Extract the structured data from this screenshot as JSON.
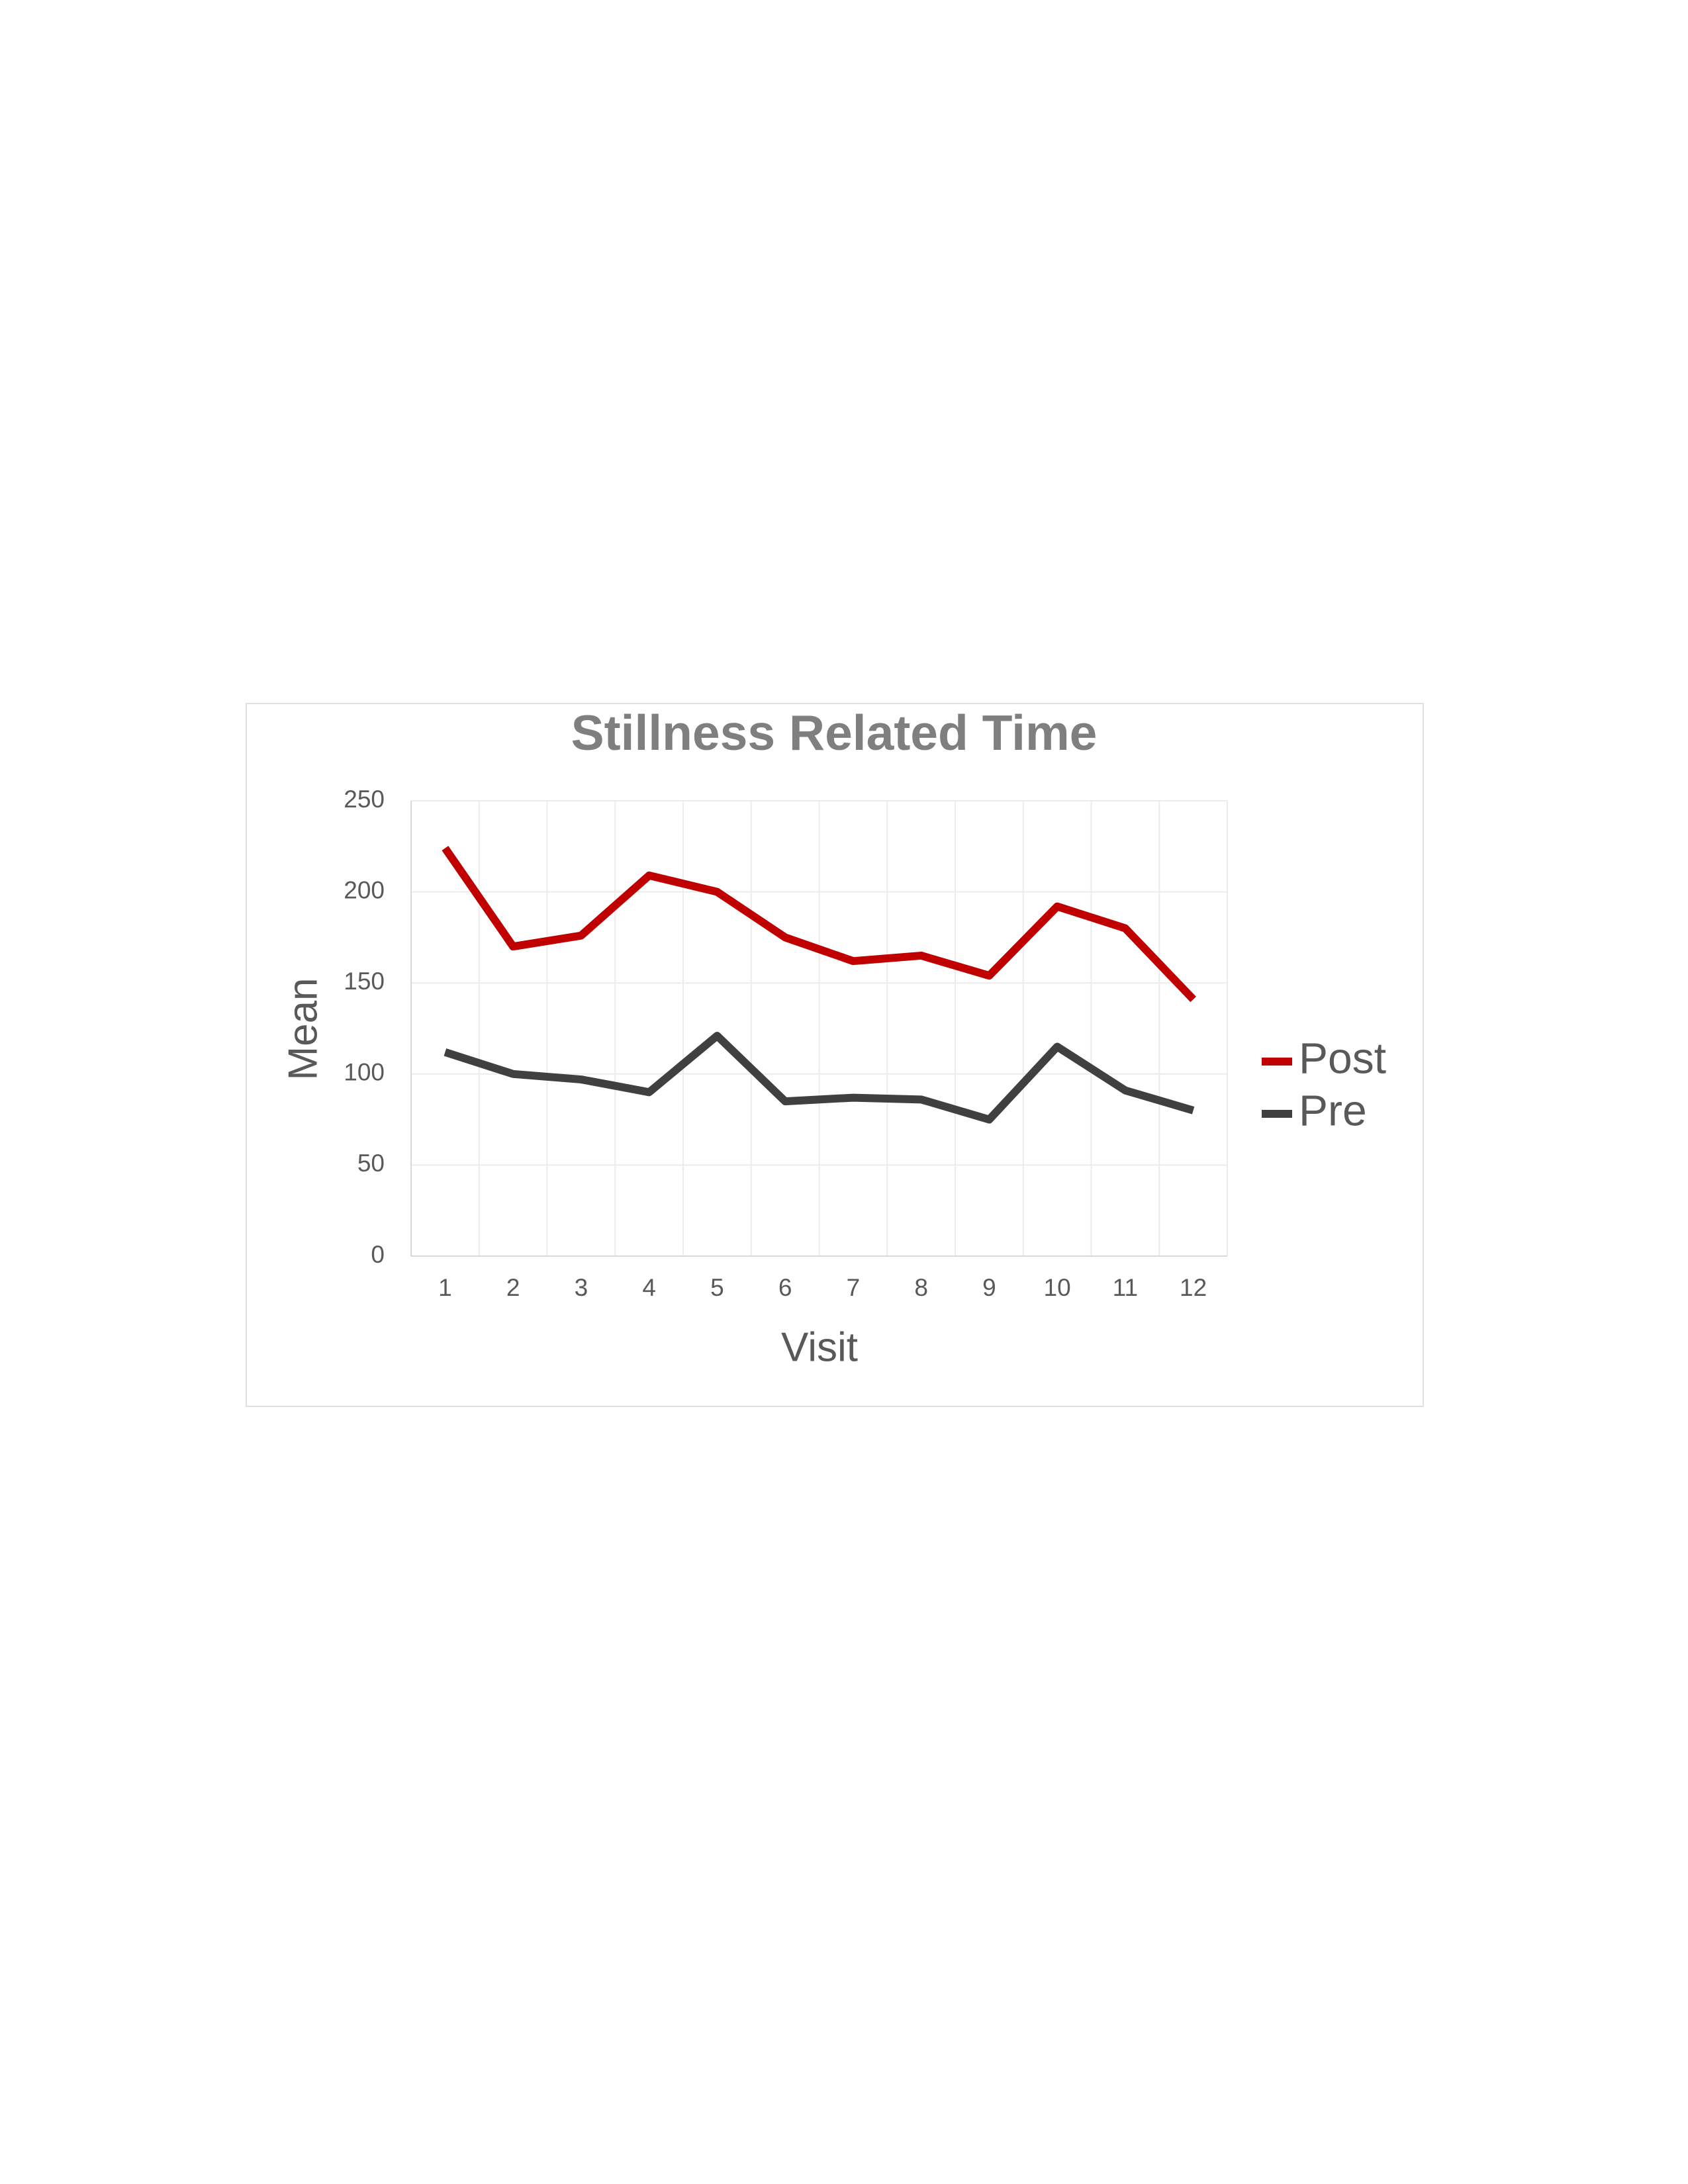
{
  "chart_data": {
    "type": "line",
    "title": "Stillness Related Time",
    "x_label": "Visit",
    "y_label": "Mean",
    "categories": [
      "1",
      "2",
      "3",
      "4",
      "5",
      "6",
      "7",
      "8",
      "9",
      "10",
      "11",
      "12"
    ],
    "series": [
      {
        "name": "Post",
        "color": "#c00000",
        "values": [
          224,
          170,
          176,
          209,
          200,
          175,
          162,
          165,
          154,
          192,
          180,
          141
        ]
      },
      {
        "name": "Pre",
        "color": "#404040",
        "values": [
          112,
          100,
          97,
          90,
          121,
          85,
          87,
          86,
          75,
          115,
          91,
          80
        ]
      }
    ],
    "ylim": [
      0,
      250
    ],
    "yticks": [
      0,
      50,
      100,
      150,
      200,
      250
    ],
    "grid": true,
    "legend": "right"
  }
}
